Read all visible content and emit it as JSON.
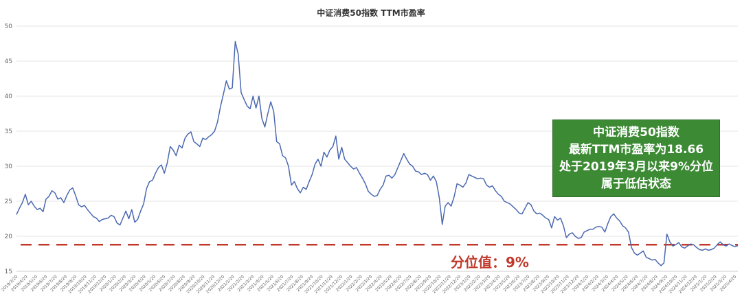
{
  "chart_data": {
    "type": "line",
    "title": "中证消费50指数 TTM市盈率",
    "xlabel": "",
    "ylabel": "",
    "ylim": [
      15,
      50
    ],
    "yticks": [
      15,
      20,
      25,
      30,
      35,
      40,
      45,
      50
    ],
    "grid": "horizontal",
    "x_tick_labels": [
      "2019/3/20",
      "2019/4/20",
      "2019/5/20",
      "2019/6/20",
      "2019/7/20",
      "2019/8/20",
      "2019/9/20",
      "2019/10/20",
      "2019/11/20",
      "2019/12/20",
      "2020/1/20",
      "2020/2/20",
      "2020/3/20",
      "2020/4/20",
      "2020/5/20",
      "2020/6/20",
      "2020/7/20",
      "2020/8/20",
      "2020/9/20",
      "2020/10/20",
      "2020/11/20",
      "2020/12/20",
      "2021/1/20",
      "2021/2/20",
      "2021/3/20",
      "2021/4/20",
      "2021/5/20",
      "2021/6/20",
      "2021/7/20",
      "2021/8/20",
      "2021/9/20",
      "2021/10/20",
      "2021/11/20",
      "2021/12/20",
      "2022/1/20",
      "2022/2/20",
      "2022/3/20",
      "2022/4/20",
      "2022/5/20",
      "2022/6/20",
      "2022/7/20",
      "2022/8/20",
      "2022/9/20",
      "2022/10/20",
      "2022/11/20",
      "2022/12/20",
      "2023/1/20",
      "2023/2/20",
      "2023/3/20",
      "2023/4/20",
      "2023/5/20",
      "2023/6/20",
      "2023/7/20",
      "2023/8/20",
      "2023/9/20",
      "2023/10/20",
      "2023/11/20",
      "2023/12/20",
      "2024/1/20",
      "2024/2/20",
      "2024/3/20",
      "2024/4/20",
      "2024/5/20",
      "2024/6/20",
      "2024/7/20",
      "2024/8/20",
      "2024/9/20",
      "2024/10/20",
      "2024/11/20",
      "2024/12/20",
      "2025/1/20",
      "2025/2/20",
      "2025/3/20",
      "2025/4/20"
    ],
    "series": [
      {
        "color": "#4a68b0",
        "values": [
          23.1,
          24.0,
          24.8,
          26.0,
          24.5,
          25.0,
          24.3,
          23.8,
          24.0,
          23.5,
          25.3,
          25.7,
          26.5,
          26.2,
          25.3,
          25.5,
          24.8,
          25.8,
          26.6,
          26.9,
          25.8,
          24.5,
          24.2,
          24.4,
          23.8,
          23.3,
          22.8,
          22.6,
          22.1,
          22.4,
          22.5,
          22.6,
          23.0,
          22.8,
          21.9,
          21.6,
          22.6,
          23.6,
          22.5,
          23.8,
          22.0,
          22.4,
          23.6,
          24.6,
          26.8,
          27.8,
          28.0,
          29.0,
          29.8,
          30.2,
          29.0,
          30.5,
          32.8,
          32.3,
          31.5,
          33.0,
          32.6,
          34.0,
          34.6,
          34.9,
          33.5,
          33.2,
          32.8,
          34.0,
          33.8,
          34.2,
          34.5,
          35.0,
          36.3,
          38.5,
          40.3,
          42.2,
          41.0,
          41.2,
          47.8,
          46.0,
          40.5,
          39.5,
          38.6,
          38.2,
          40.0,
          38.3,
          40.0,
          36.8,
          35.6,
          37.5,
          39.2,
          37.8,
          33.5,
          33.2,
          31.5,
          31.2,
          30.0,
          27.3,
          27.8,
          26.8,
          26.2,
          27.0,
          26.7,
          27.8,
          28.8,
          30.3,
          31.0,
          30.0,
          32.0,
          31.3,
          32.3,
          32.8,
          34.3,
          31.0,
          32.7,
          31.0,
          30.5,
          30.0,
          29.6,
          29.8,
          29.0,
          28.3,
          27.5,
          26.4,
          26.0,
          25.7,
          25.8,
          26.7,
          27.3,
          28.6,
          28.7,
          28.3,
          28.8,
          29.8,
          30.8,
          31.8,
          31.0,
          30.3,
          30.0,
          29.3,
          29.2,
          28.8,
          29.0,
          28.8,
          28.0,
          28.6,
          27.8,
          25.5,
          21.7,
          24.3,
          24.8,
          24.3,
          25.6,
          27.5,
          27.3,
          27.0,
          27.6,
          28.8,
          28.6,
          28.4,
          28.2,
          28.3,
          28.2,
          27.3,
          27.0,
          27.2,
          26.5,
          26.0,
          25.7,
          25.0,
          24.8,
          24.6,
          24.2,
          23.8,
          23.3,
          23.2,
          24.0,
          24.8,
          24.5,
          23.6,
          23.2,
          23.3,
          23.0,
          22.6,
          22.4,
          21.2,
          22.8,
          22.3,
          22.6,
          21.5,
          19.8,
          20.3,
          20.5,
          20.0,
          19.7,
          19.8,
          20.6,
          20.8,
          21.0,
          21.0,
          21.3,
          21.4,
          21.3,
          20.6,
          21.8,
          22.8,
          23.2,
          22.6,
          22.2,
          21.5,
          21.2,
          20.6,
          18.4,
          17.6,
          17.3,
          17.6,
          17.9,
          17.0,
          16.8,
          16.6,
          16.7,
          16.2,
          15.8,
          16.2,
          20.3,
          19.2,
          18.6,
          18.8,
          19.1,
          18.5,
          18.3,
          18.6,
          18.9,
          18.8,
          18.4,
          18.1,
          18.0,
          18.2,
          18.0,
          18.1,
          18.3,
          18.8,
          19.2,
          18.8,
          18.6,
          18.9,
          18.7,
          18.5,
          18.66
        ]
      }
    ],
    "reference_line": {
      "value": 18.8,
      "color": "#c0392b",
      "style": "dashed"
    },
    "annotation_box": {
      "lines": [
        "中证消费50指数",
        "最新TTM市盈率为18.66",
        "处于2019年3月以来9%分位",
        "属于低估状态"
      ],
      "background": "#3c8a34",
      "text_color": "#ffffff"
    },
    "percentile_label": {
      "text": "分位值：9%",
      "color": "#c0392b"
    },
    "colors": {
      "line": "#4a68b0",
      "grid": "#e6e6e6",
      "tick_text": "#666666"
    }
  }
}
